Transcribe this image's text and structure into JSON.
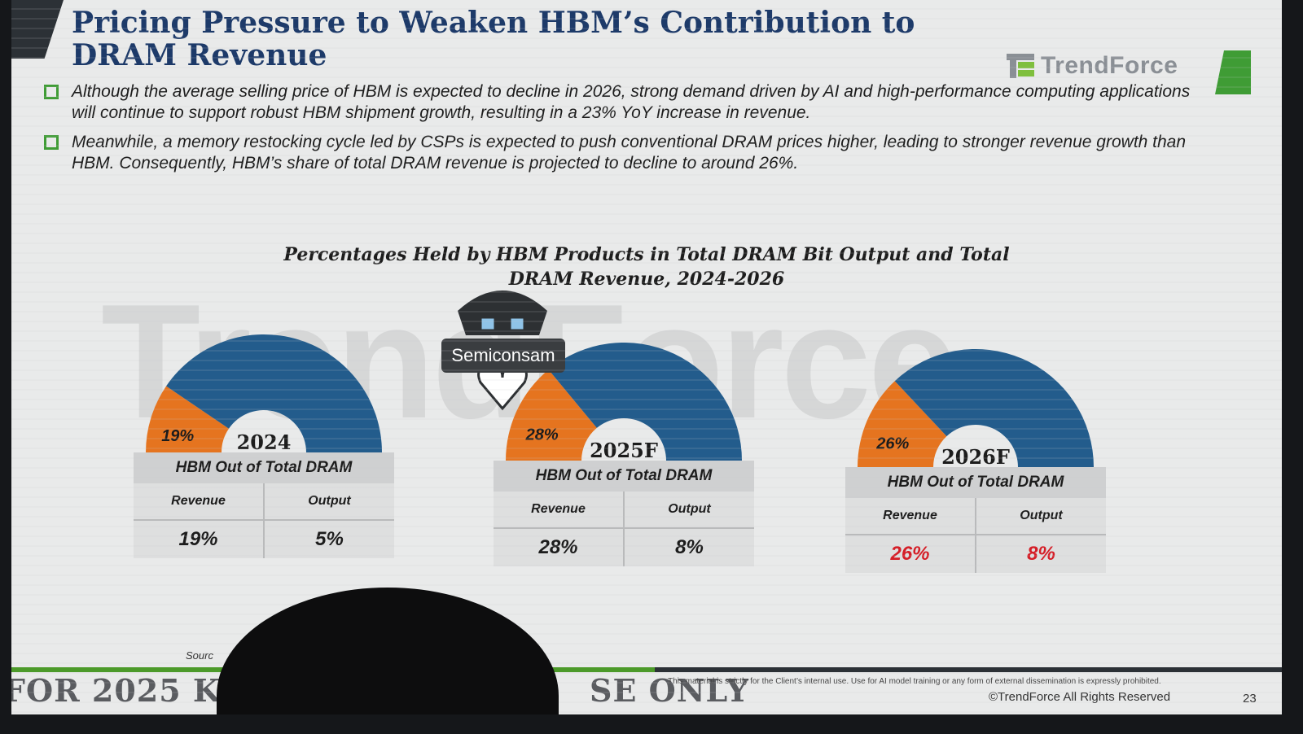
{
  "slide": {
    "title": "Pricing Pressure to Weaken HBM’s Contribution to DRAM Revenue",
    "logo_text": "TrendForce",
    "bullets": [
      "Although the average selling price of HBM is expected to decline in 2026, strong demand driven by AI and high-performance computing applications will continue to support robust HBM shipment growth, resulting in a 23% YoY increase in revenue.",
      "Meanwhile, a memory restocking cycle led by CSPs is expected to push conventional DRAM prices higher, leading to stronger revenue growth than HBM. Consequently, HBM’s share of total DRAM revenue is projected to decline to around 26%."
    ],
    "watermark_text": "TrendForce",
    "source_label": "Sourc",
    "confidential_left": "FOR 2025 KO",
    "confidential_right": "SE ONLY",
    "legal_text": "This material is strictly for the Client’s internal use. Use for AI model training or any form of external dissemination is expressly prohibited.",
    "copyright": "©TrendForce All Rights Reserved",
    "page_number": "23",
    "stamp_label": "Semiconsam"
  },
  "colors": {
    "hbm_orange": "#e5741f",
    "other_blue": "#235c8c",
    "accent_green": "#3f9c35",
    "title_navy": "#1d3a69",
    "highlight_red": "#d51e27"
  },
  "chart_data": {
    "type": "pie",
    "title": "Percentages Held by HBM Products in Total DRAM Bit Output and Total DRAM Revenue, 2024-2026",
    "table_header": "HBM Out of Total DRAM",
    "column_labels": [
      "Revenue",
      "Output"
    ],
    "panels": [
      {
        "year": "2024",
        "revenue": 19,
        "output": 5,
        "revenue_label": "19%",
        "output_label": "5%",
        "highlight": false
      },
      {
        "year": "2025F",
        "revenue": 28,
        "output": 8,
        "revenue_label": "28%",
        "output_label": "8%",
        "highlight": false
      },
      {
        "year": "2026F",
        "revenue": 26,
        "output": 8,
        "revenue_label": "26%",
        "output_label": "8%",
        "highlight": true
      }
    ]
  }
}
